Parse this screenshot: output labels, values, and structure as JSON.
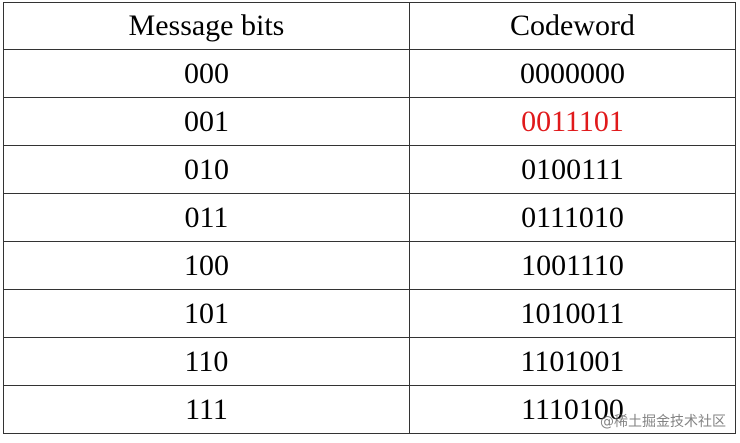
{
  "table": {
    "header": [
      "Message bits",
      "Codeword"
    ],
    "rows": [
      [
        "000",
        "0000000"
      ],
      [
        "001",
        "0011101"
      ],
      [
        "010",
        "0100111"
      ],
      [
        "011",
        "0111010"
      ],
      [
        "100",
        "1001110"
      ],
      [
        "101",
        "1010011"
      ],
      [
        "110",
        "1101001"
      ],
      [
        "111",
        "1110100"
      ]
    ]
  },
  "watermark": "@稀土掘金技术社区"
}
